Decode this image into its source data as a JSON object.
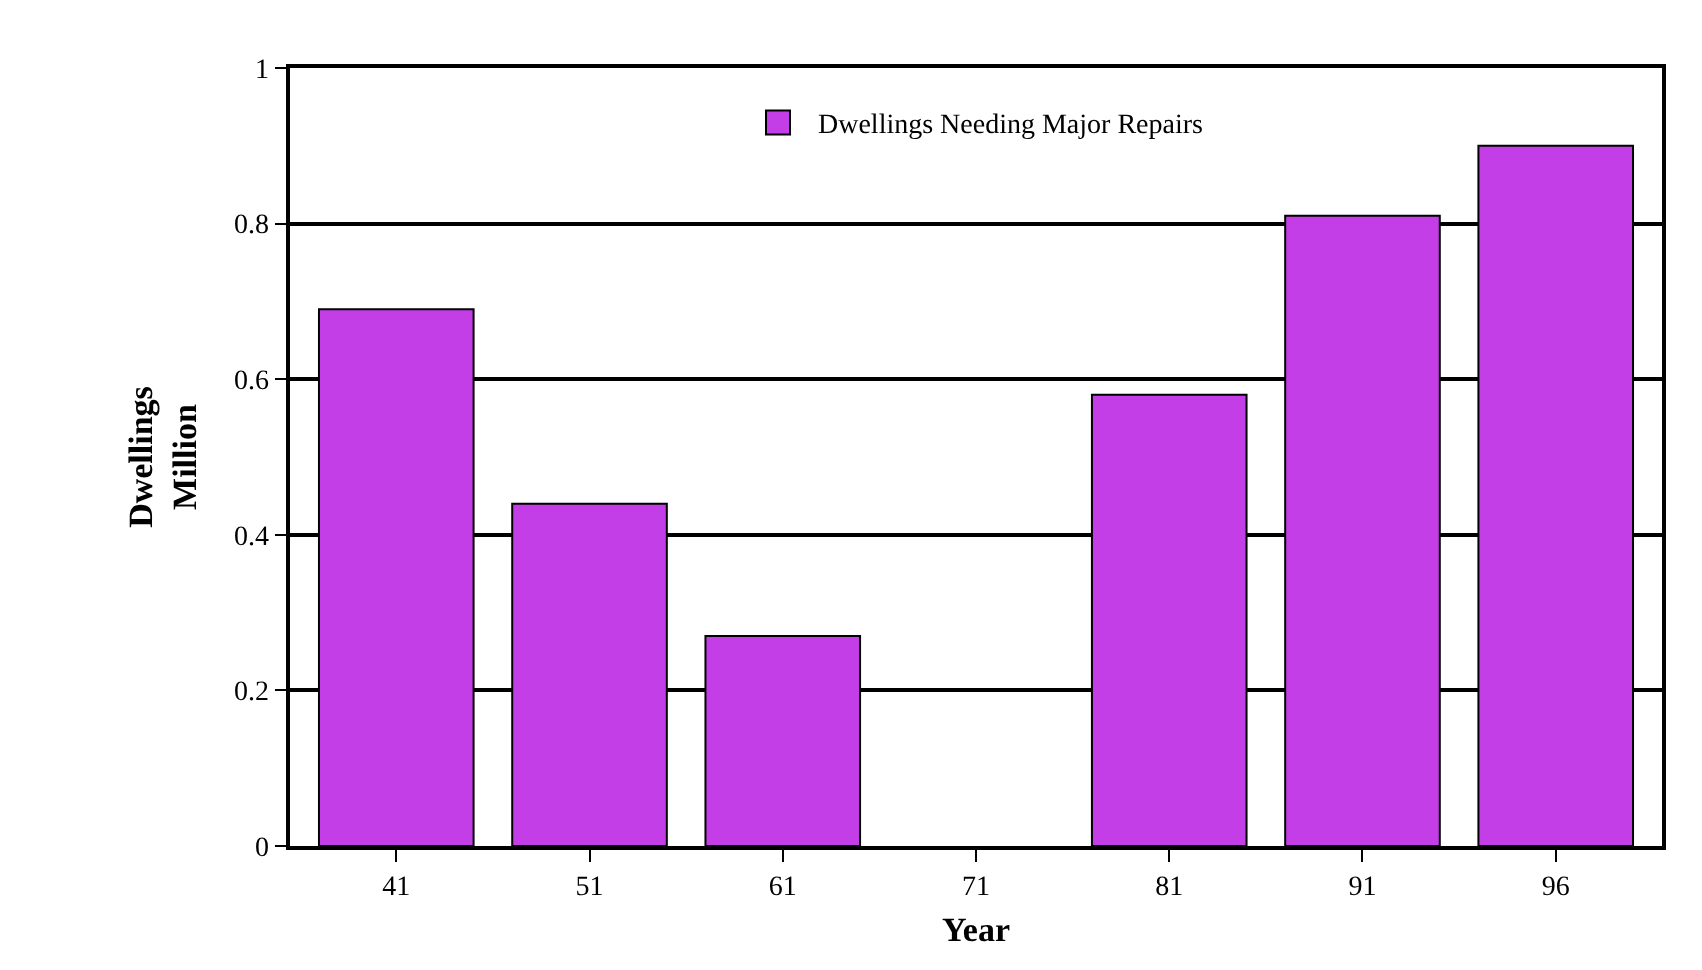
{
  "chart_data": {
    "type": "bar",
    "xlabel": "Year",
    "ylabel": "Dwellings\nMillion",
    "categories": [
      "41",
      "51",
      "61",
      "71",
      "81",
      "91",
      "96"
    ],
    "series": [
      {
        "name": "Dwellings Needing Major Repairs",
        "color": "#c43ee8",
        "values": [
          0.69,
          0.44,
          0.27,
          null,
          0.58,
          0.81,
          0.9
        ]
      }
    ],
    "ylim": [
      0,
      1
    ],
    "yticks": [
      0,
      0.2,
      0.4,
      0.6,
      0.8,
      1
    ],
    "grid": "y",
    "legend": "top"
  }
}
